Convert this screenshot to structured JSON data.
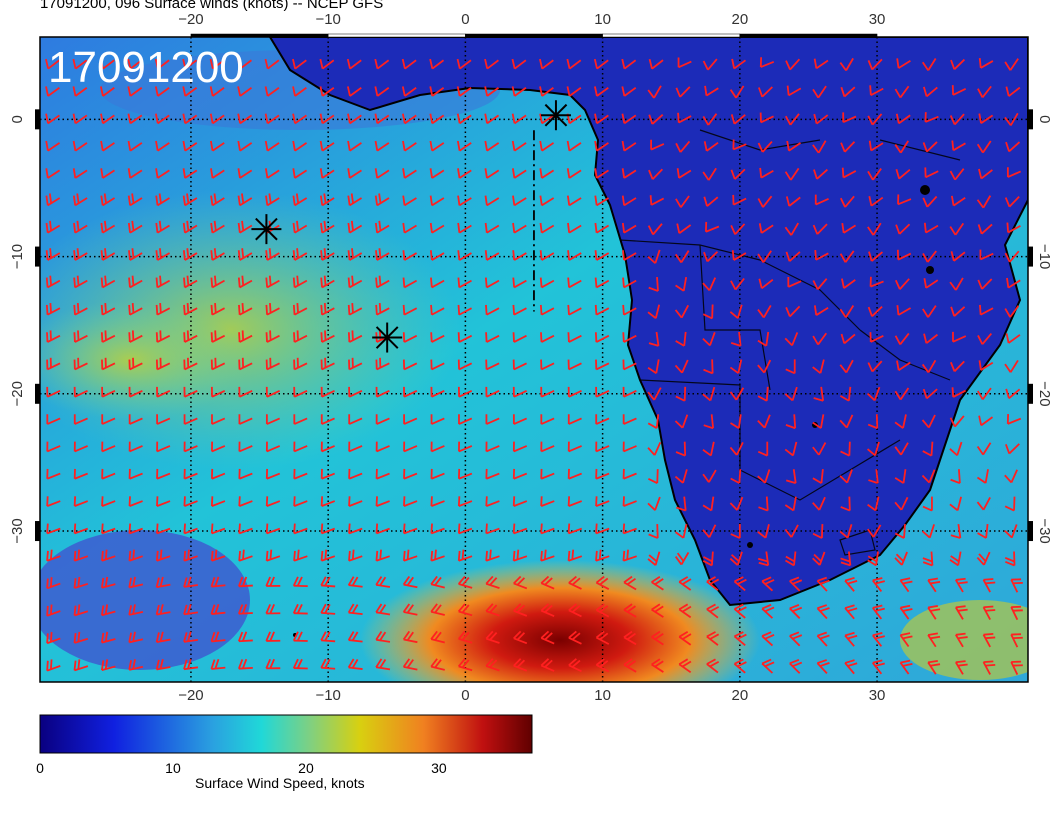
{
  "title": "17091200, 096 Surface winds (knots) -- NCEP GFS",
  "stamp": "17091200",
  "map": {
    "lon_range": [
      -31,
      41
    ],
    "lat_range": [
      -41,
      6
    ],
    "lon_ticks": [
      -20,
      -10,
      0,
      10,
      20,
      30
    ],
    "lat_ticks": [
      0,
      -10,
      -20,
      -30
    ],
    "lon_tick_labels": [
      "−20",
      "−10",
      "0",
      "10",
      "20",
      "30"
    ],
    "lat_tick_labels": [
      "0",
      "−10",
      "−20",
      "−30"
    ],
    "markers": [
      {
        "lon": -14.5,
        "lat": -8.0
      },
      {
        "lon": -5.7,
        "lat": -15.9
      },
      {
        "lon": 6.6,
        "lat": 0.3
      }
    ],
    "colors": {
      "land": "#1c2bb8",
      "ocean_low": "#2a5ad0",
      "ocean_mid": "#1fb9d8",
      "ocean_high": "#c8d030",
      "jet": "#b01010",
      "barb": "#ff2020",
      "coast": "#000000"
    }
  },
  "colorbar": {
    "label": "Surface Wind Speed, knots",
    "ticks": [
      0,
      10,
      20,
      30
    ],
    "tick_labels": [
      "0",
      "10",
      "20",
      "30"
    ],
    "range": [
      0,
      37
    ]
  }
}
